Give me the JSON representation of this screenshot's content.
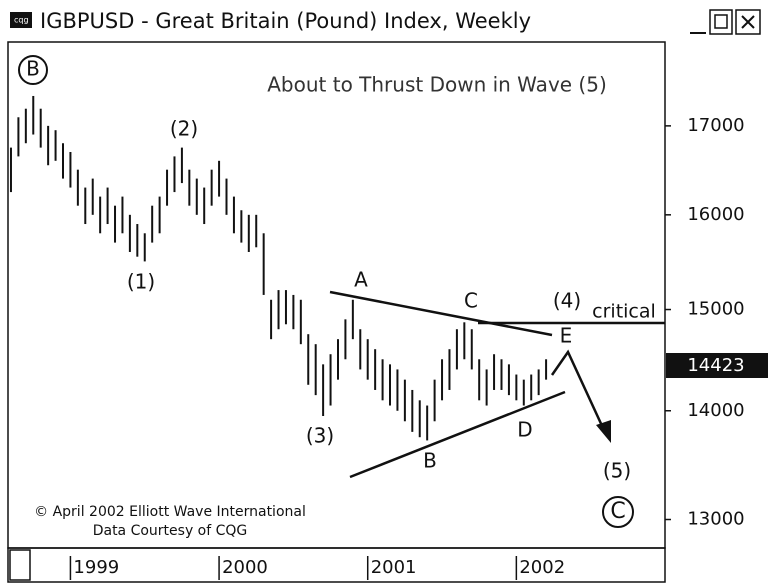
{
  "chart_data": {
    "type": "hilo",
    "title": "IGBPUSD - Great Britain (Pound) Index, Weekly",
    "color": "#111111",
    "log_y": true,
    "grid": false,
    "ylim": [
      12750,
      18000
    ],
    "yticks": [
      13000,
      14000,
      15000,
      16000,
      17000
    ],
    "xlim": [
      1998.58,
      2003.0
    ],
    "xticks": [
      1999,
      2000,
      2001,
      2002
    ],
    "last_price": 14423,
    "x": [
      1998.6,
      1998.65,
      1998.7,
      1998.75,
      1998.8,
      1998.85,
      1998.9,
      1998.95,
      1999.0,
      1999.05,
      1999.1,
      1999.15,
      1999.2,
      1999.25,
      1999.3,
      1999.35,
      1999.4,
      1999.45,
      1999.5,
      1999.55,
      1999.6,
      1999.65,
      1999.7,
      1999.75,
      1999.8,
      1999.85,
      1999.9,
      1999.95,
      2000.0,
      2000.05,
      2000.1,
      2000.15,
      2000.2,
      2000.25,
      2000.3,
      2000.35,
      2000.4,
      2000.45,
      2000.5,
      2000.55,
      2000.6,
      2000.65,
      2000.7,
      2000.75,
      2000.8,
      2000.85,
      2000.9,
      2000.95,
      2001.0,
      2001.05,
      2001.1,
      2001.15,
      2001.2,
      2001.25,
      2001.3,
      2001.35,
      2001.4,
      2001.45,
      2001.5,
      2001.55,
      2001.6,
      2001.65,
      2001.7,
      2001.75,
      2001.8,
      2001.85,
      2001.9,
      2001.95,
      2002.0,
      2002.05,
      2002.1,
      2002.15,
      2002.2
    ],
    "high": [
      16750,
      17100,
      17200,
      17350,
      17200,
      17000,
      16950,
      16800,
      16700,
      16500,
      16300,
      16400,
      16200,
      16300,
      16100,
      16200,
      16000,
      15900,
      15800,
      16100,
      16200,
      16500,
      16650,
      16750,
      16500,
      16400,
      16300,
      16500,
      16600,
      16400,
      16200,
      16050,
      16000,
      16000,
      15800,
      15100,
      15200,
      15200,
      15150,
      15100,
      14750,
      14650,
      14450,
      14550,
      14700,
      14900,
      15100,
      14800,
      14700,
      14600,
      14500,
      14450,
      14400,
      14300,
      14200,
      14100,
      14050,
      14300,
      14500,
      14600,
      14800,
      14870,
      14800,
      14500,
      14400,
      14550,
      14500,
      14450,
      14350,
      14300,
      14350,
      14400,
      14500
    ],
    "low": [
      16250,
      16650,
      16800,
      16900,
      16750,
      16550,
      16600,
      16400,
      16300,
      16100,
      15900,
      16000,
      15800,
      15900,
      15700,
      15800,
      15600,
      15550,
      15500,
      15700,
      15800,
      16100,
      16250,
      16350,
      16100,
      16000,
      15900,
      16100,
      16200,
      16000,
      15800,
      15700,
      15600,
      15650,
      15150,
      14700,
      14800,
      14850,
      14800,
      14650,
      14250,
      14150,
      13950,
      14050,
      14300,
      14500,
      14700,
      14400,
      14300,
      14200,
      14100,
      14050,
      14000,
      13900,
      13800,
      13750,
      13720,
      13900,
      14100,
      14200,
      14400,
      14500,
      14400,
      14100,
      14050,
      14200,
      14200,
      14150,
      14100,
      14050,
      14100,
      14150,
      14300
    ],
    "annotations": [
      "B",
      "About to Thrust Down in Wave (5)",
      "(2)",
      "(1)",
      "A",
      "C",
      "(4)",
      "critical",
      "E",
      "(3)",
      "B",
      "D",
      "(5)",
      "C",
      "© April 2002 Elliott Wave International",
      "Data Courtesy of CQG"
    ]
  }
}
